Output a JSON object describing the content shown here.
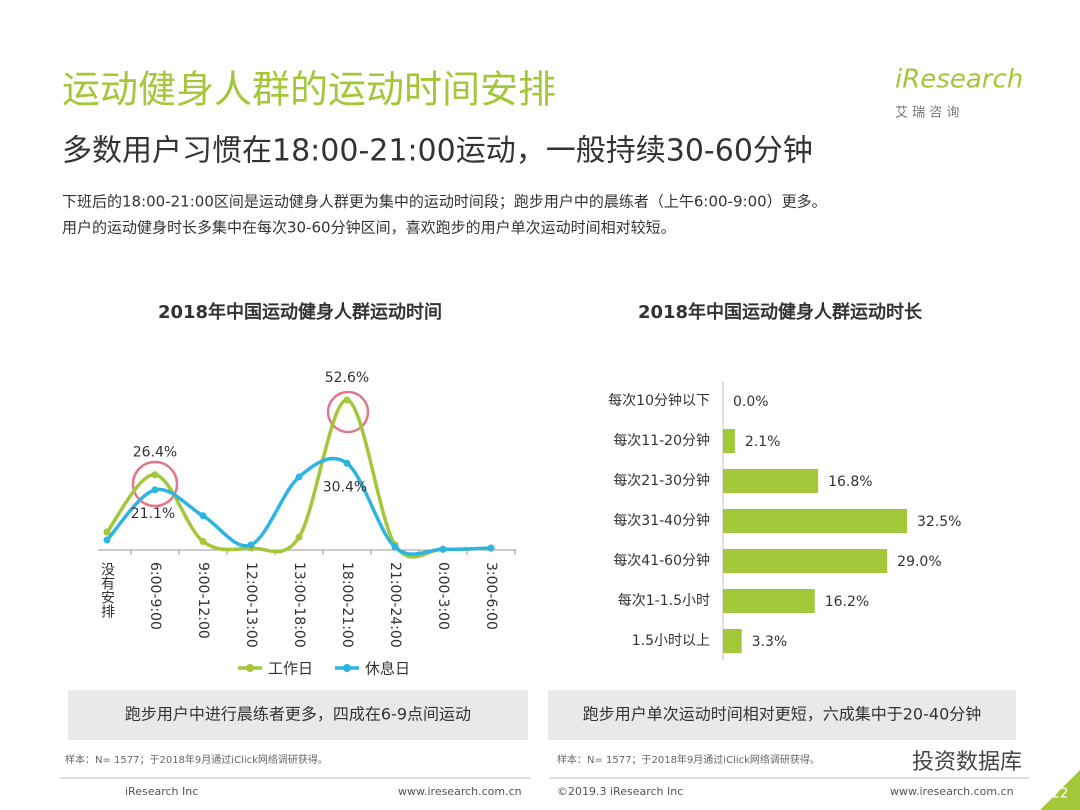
{
  "header": {
    "title": "运动健身人群的运动时间安排",
    "subtitle": "多数用户习惯在18:00-21:00运动，一般持续30-60分钟",
    "description": [
      "下班后的18:00-21:00区间是运动健身人群更为集中的运动时间段；跑步用户中的晨练者（上午6:00-9:00）更多。",
      "用户的运动健身时长多集中在每次30-60分钟区间，喜欢跑步的用户单次运动时间相对较短。"
    ],
    "logo": "iResearch",
    "logo_sub": "艾 瑞 咨 询"
  },
  "chart_data": [
    {
      "type": "line",
      "title": "2018年中国运动健身人群运动时间",
      "categories": [
        "没有安排",
        "6:00-9:00",
        "9:00-12:00",
        "12:00-13:00",
        "13:00-18:00",
        "18:00-21:00",
        "21:00-24:00",
        "0:00-3:00",
        "3:00-6:00"
      ],
      "series": [
        {
          "name": "工作日",
          "color": "#a2c739",
          "values": [
            6.3,
            26.4,
            3,
            0.7,
            4.5,
            52.6,
            1.8,
            0.3,
            0.6
          ],
          "value_labels": [
            null,
            "26.4%",
            null,
            null,
            null,
            "52.6%",
            null,
            null,
            null
          ]
        },
        {
          "name": "休息日",
          "color": "#2eb4e0",
          "values": [
            3.5,
            21.1,
            12,
            1.8,
            25.6,
            30.4,
            1,
            0.2,
            0.7
          ],
          "value_labels": [
            null,
            "21.1%",
            null,
            null,
            null,
            "30.4%",
            null,
            null,
            null
          ]
        }
      ],
      "legend": "bottom",
      "callout": "跑步用户中进行晨练者更多，四成在6-9点间运动",
      "note": "样本：N= 1577；于2018年9月通过iClick网络调研获得。"
    },
    {
      "type": "barh",
      "title": "2018年中国运动健身人群运动时长",
      "categories": [
        "每次10分钟以下",
        "每次11-20分钟",
        "每次21-30分钟",
        "每次31-40分钟",
        "每次41-60分钟",
        "每次1-1.5小时",
        "1.5小时以上"
      ],
      "values": [
        0.0,
        2.1,
        16.8,
        32.5,
        29.0,
        16.2,
        3.3
      ],
      "value_labels": [
        "0.0%",
        "2.1%",
        "16.8%",
        "32.5%",
        "29.0%",
        "16.2%",
        "3.3%"
      ],
      "color": "#a2c739",
      "callout": "跑步用户单次运动时间相对更短，六成集中于20-40分钟",
      "note": "样本：N= 1577；于2018年9月通过iClick网络调研获得。"
    }
  ],
  "footer": {
    "left_copyright": "iResearch Inc",
    "left_url": "www.iresearch.com.cn",
    "copyright": "©2019.3 iResearch Inc",
    "url": "www.iresearch.com.cn",
    "page": "22",
    "watermark": "投资数据库"
  }
}
